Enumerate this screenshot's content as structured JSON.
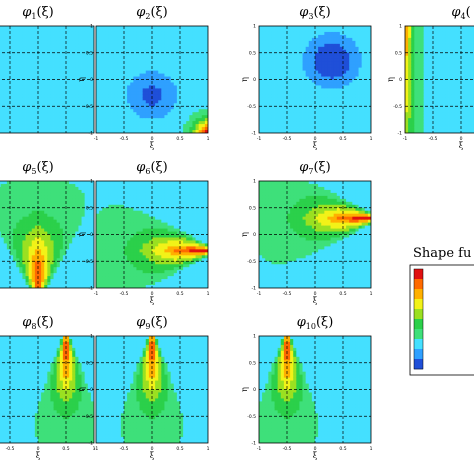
{
  "chart_data": {
    "type": "heatmap",
    "colormap": [
      "#1f4fd8",
      "#2fa0ff",
      "#44e0ff",
      "#3ee07a",
      "#2bd04a",
      "#9be021",
      "#f2f218",
      "#ffb000",
      "#ff6a00",
      "#e01010"
    ],
    "legend": {
      "title": "Shape fu"
    },
    "panels": [
      {
        "base": "φ",
        "sub": "1",
        "suffix": "(ξ)",
        "func": "phi1",
        "show_xticks": false,
        "show_yticks": false
      },
      {
        "base": "φ",
        "sub": "2",
        "suffix": "(ξ)",
        "func": "phi2",
        "show_xticks": true,
        "show_yticks": true
      },
      {
        "base": "φ",
        "sub": "3",
        "suffix": "(ξ)",
        "func": "phi3",
        "show_xticks": true,
        "show_yticks": true
      },
      {
        "base": "φ",
        "sub": "4",
        "suffix": "(",
        "func": "phi4",
        "show_xticks": true,
        "show_yticks": true
      },
      {
        "base": "φ",
        "sub": "5",
        "suffix": "(ξ)",
        "func": "phi5",
        "show_xticks": false,
        "show_yticks": false
      },
      {
        "base": "φ",
        "sub": "6",
        "suffix": "(ξ)",
        "func": "phi6",
        "show_xticks": true,
        "show_yticks": true
      },
      {
        "base": "φ",
        "sub": "7",
        "suffix": "(ξ)",
        "func": "phi7",
        "show_xticks": true,
        "show_yticks": true
      },
      {
        "base": "φ",
        "sub": "8",
        "suffix": "(ξ)",
        "func": "phi8",
        "show_xticks": true,
        "show_yticks": false
      },
      {
        "base": "φ",
        "sub": "9",
        "suffix": "(ξ)",
        "func": "phi9",
        "show_xticks": true,
        "show_yticks": true
      },
      {
        "base": "φ",
        "sub": "10",
        "suffix": "(ξ)",
        "func": "phi10",
        "show_xticks": true,
        "show_yticks": true
      }
    ],
    "xlabel": "ξ",
    "ylabel": "η",
    "xlim": [
      -1,
      1
    ],
    "ylim": [
      -1,
      1
    ],
    "xticks": [
      "-1",
      "-0.5",
      "0",
      "0.5",
      "1"
    ],
    "yticks": [
      "-1",
      "-0.5",
      "0",
      "0.5",
      "1"
    ],
    "grid": "dashed at -0.5, 0, 0.5"
  }
}
